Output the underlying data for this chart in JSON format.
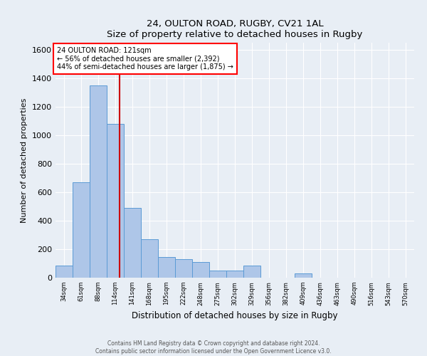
{
  "title1": "24, OULTON ROAD, RUGBY, CV21 1AL",
  "title2": "Size of property relative to detached houses in Rugby",
  "xlabel": "Distribution of detached houses by size in Rugby",
  "ylabel": "Number of detached properties",
  "annotation_line1": "24 OULTON ROAD: 121sqm",
  "annotation_line2": "← 56% of detached houses are smaller (2,392)",
  "annotation_line3": "44% of semi-detached houses are larger (1,875) →",
  "property_size": 121,
  "bin_edges": [
    20,
    47,
    74,
    101,
    128,
    155,
    182,
    209,
    236,
    263,
    290,
    317,
    344,
    371,
    398,
    425,
    452,
    479,
    506,
    533,
    560,
    587
  ],
  "bin_labels": [
    "34sqm",
    "61sqm",
    "88sqm",
    "114sqm",
    "141sqm",
    "168sqm",
    "195sqm",
    "222sqm",
    "248sqm",
    "275sqm",
    "302sqm",
    "329sqm",
    "356sqm",
    "382sqm",
    "409sqm",
    "436sqm",
    "463sqm",
    "490sqm",
    "516sqm",
    "543sqm",
    "570sqm"
  ],
  "bar_heights": [
    85,
    670,
    1350,
    1080,
    490,
    270,
    145,
    130,
    110,
    50,
    50,
    85,
    2,
    0,
    30,
    0,
    0,
    0,
    0,
    0,
    0
  ],
  "bar_color": "#aec6e8",
  "bar_edge_color": "#5b9bd5",
  "line_color": "#cc0000",
  "ylim": [
    0,
    1650
  ],
  "yticks": [
    0,
    200,
    400,
    600,
    800,
    1000,
    1200,
    1400,
    1600
  ],
  "footer1": "Contains HM Land Registry data © Crown copyright and database right 2024.",
  "footer2": "Contains public sector information licensed under the Open Government Licence v3.0.",
  "bg_color": "#e8eef5",
  "plot_bg_color": "#e8eef5"
}
